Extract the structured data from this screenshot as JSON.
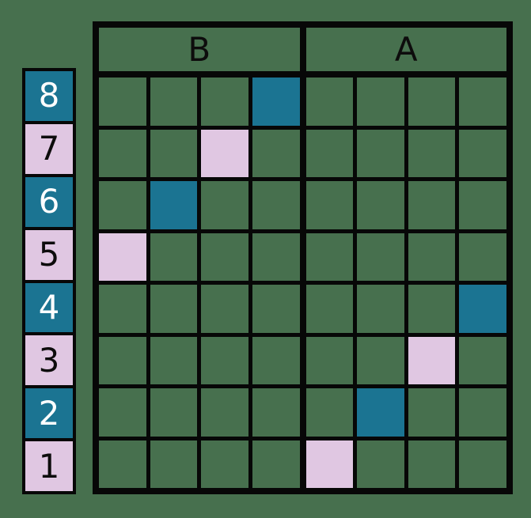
{
  "colors": {
    "background": "#47704e",
    "grid_line": "#070707",
    "teal": "#1b7492",
    "pink": "#e0c7e2",
    "label_text_on_teal": "#ffffff",
    "label_text_on_pink": "#0d0c0c",
    "header_text": "#0d0c0c"
  },
  "headers": [
    {
      "label": "B"
    },
    {
      "label": "A"
    }
  ],
  "row_labels": [
    {
      "value": "8",
      "color": "teal"
    },
    {
      "value": "7",
      "color": "pink"
    },
    {
      "value": "6",
      "color": "teal"
    },
    {
      "value": "5",
      "color": "pink"
    },
    {
      "value": "4",
      "color": "teal"
    },
    {
      "value": "3",
      "color": "pink"
    },
    {
      "value": "2",
      "color": "teal"
    },
    {
      "value": "1",
      "color": "pink"
    }
  ],
  "grid": {
    "rows": 8,
    "columns": 8,
    "sections": [
      {
        "label": "B",
        "columns": [
          1,
          4
        ]
      },
      {
        "label": "A",
        "columns": [
          5,
          8
        ]
      }
    ],
    "filled_cells": [
      {
        "row": 8,
        "col": 4,
        "color": "teal"
      },
      {
        "row": 7,
        "col": 3,
        "color": "pink"
      },
      {
        "row": 6,
        "col": 2,
        "color": "teal"
      },
      {
        "row": 5,
        "col": 1,
        "color": "pink"
      },
      {
        "row": 4,
        "col": 8,
        "color": "teal"
      },
      {
        "row": 3,
        "col": 7,
        "color": "pink"
      },
      {
        "row": 2,
        "col": 6,
        "color": "teal"
      },
      {
        "row": 1,
        "col": 5,
        "color": "pink"
      }
    ]
  }
}
